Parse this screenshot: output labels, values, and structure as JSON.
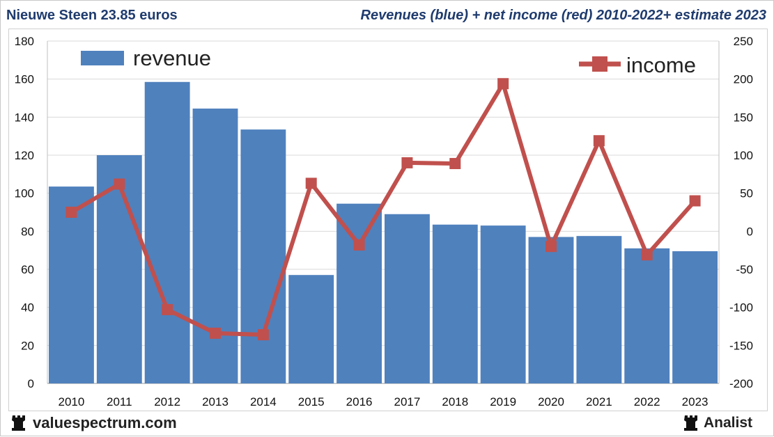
{
  "header": {
    "left_title": "Nieuwe Steen 23.85 euros",
    "right_title": "Revenues (blue) + net income (red) 2010-2022+ estimate 2023"
  },
  "footer": {
    "brand": "valuespectrum.com",
    "analist": "Analist"
  },
  "chart_data": {
    "type": "bar",
    "categories": [
      "2010",
      "2011",
      "2012",
      "2013",
      "2014",
      "2015",
      "2016",
      "2017",
      "2018",
      "2019",
      "2020",
      "2021",
      "2022",
      "2023"
    ],
    "series": [
      {
        "name": "revenue",
        "type": "bar",
        "axis": "left",
        "color": "#4f81bd",
        "values": [
          103.5,
          120,
          158.5,
          144.5,
          133.5,
          57,
          94.5,
          89,
          83.5,
          83,
          77,
          77.5,
          71,
          69.5
        ]
      },
      {
        "name": "income",
        "type": "line",
        "axis": "right",
        "color": "#c0504d",
        "values": [
          25,
          62,
          -103,
          -134,
          -136,
          63,
          -18,
          90,
          89,
          194,
          -20,
          119,
          -31,
          40
        ]
      }
    ],
    "left_axis": {
      "min": 0,
      "max": 180,
      "ticks": [
        "0",
        "20",
        "40",
        "60",
        "80",
        "100",
        "120",
        "140",
        "160",
        "180"
      ]
    },
    "right_axis": {
      "min": -200,
      "max": 250,
      "ticks": [
        "-200",
        "-150",
        "-100",
        "-50",
        "0",
        "50",
        "100",
        "150",
        "200",
        "250"
      ]
    },
    "grid": true,
    "legend": [
      {
        "label": "revenue",
        "position": "top-left"
      },
      {
        "label": "income",
        "position": "top-right"
      }
    ]
  }
}
